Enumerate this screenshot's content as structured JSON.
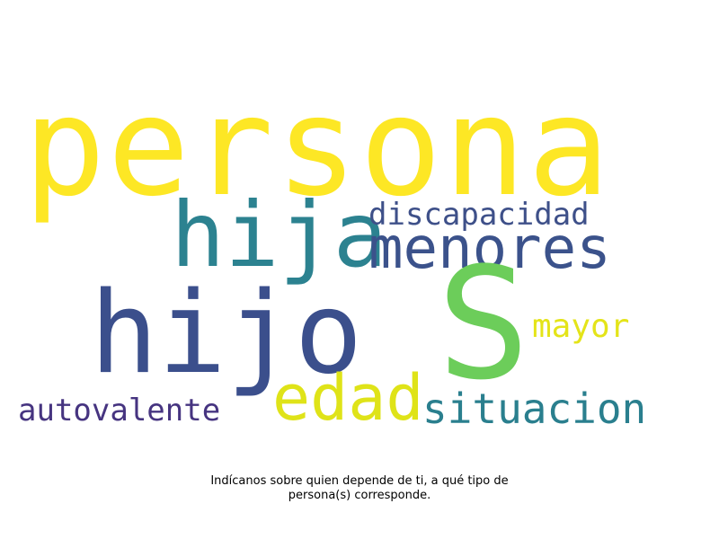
{
  "cloud": {
    "words": {
      "persona": {
        "text": "persona",
        "color": "#fde725"
      },
      "hija": {
        "text": "hija",
        "color": "#2c8290"
      },
      "menores": {
        "text": "menores",
        "color": "#3b528b"
      },
      "discapacidad": {
        "text": "discapacidad",
        "color": "#3e5089"
      },
      "hijo": {
        "text": "hijo",
        "color": "#3b4f8c"
      },
      "s": {
        "text": "S",
        "color": "#6ccd5a"
      },
      "mayor": {
        "text": "mayor",
        "color": "#e4e419"
      },
      "edad": {
        "text": "edad",
        "color": "#dfe318"
      },
      "situacion": {
        "text": "situacion",
        "color": "#2a7f8e"
      },
      "autovalente": {
        "text": "autovalente",
        "color": "#463480"
      }
    }
  },
  "caption": {
    "line1": "Indícanos sobre quien depende de ti, a qué tipo de",
    "line2": "persona(s) corresponde."
  }
}
